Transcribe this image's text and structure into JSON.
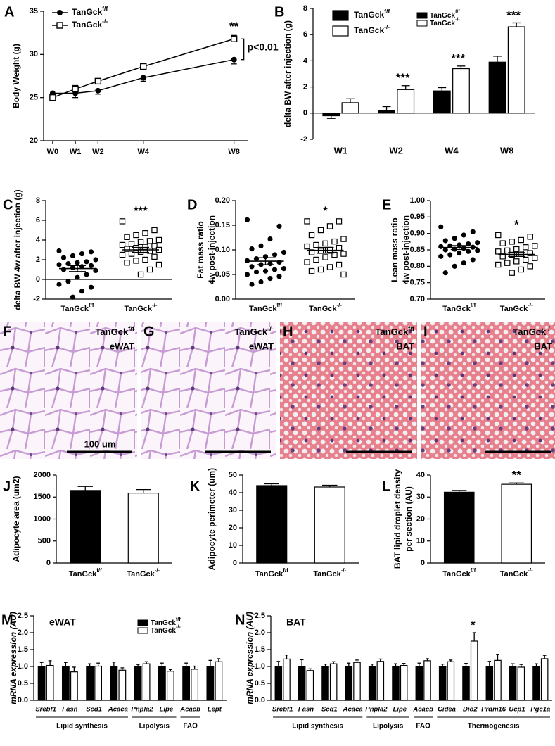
{
  "chart_data": [
    {
      "type": "line",
      "panel": "A",
      "ylabel": "Body Weight (g)",
      "x": [
        0,
        1,
        2,
        4,
        8
      ],
      "xlim": [
        -0.4,
        8.6
      ],
      "xticks": [
        {
          "value": 0,
          "label": "W0"
        },
        {
          "value": 1,
          "label": "W1"
        },
        {
          "value": 2,
          "label": "W2"
        },
        {
          "value": 4,
          "label": "W4"
        },
        {
          "value": 8,
          "label": "W8"
        }
      ],
      "ylim": [
        20,
        35
      ],
      "yticks": [
        20,
        25,
        30,
        35
      ],
      "series": [
        {
          "name": "TanGck",
          "sup": "f/f",
          "color": "#000000",
          "marker": "circle",
          "values": [
            25.5,
            25.5,
            25.8,
            27.3,
            29.4
          ],
          "errors": [
            0.5,
            0.5,
            0.4,
            0.4,
            0.5
          ]
        },
        {
          "name": "TanGck",
          "sup": "-/-",
          "color": "#000000",
          "marker": "square",
          "values": [
            25.0,
            26.0,
            26.9,
            28.6,
            31.8
          ],
          "errors": [
            0.4,
            0.4,
            0.3,
            0.3,
            0.4
          ]
        }
      ],
      "annotations": [
        {
          "text": "**"
        },
        {
          "text": "p<0.01"
        }
      ]
    },
    {
      "type": "bar",
      "panel": "B",
      "ylabel": "delta BW after injection (g)",
      "categories": [
        "W1",
        "W2",
        "W4",
        "W8"
      ],
      "ylim": [
        -2,
        8
      ],
      "yticks": [
        -2,
        0,
        2,
        4,
        6,
        8
      ],
      "series": [
        {
          "name": "TanGck",
          "sup": "f/f",
          "color": "#000000",
          "values": [
            -0.2,
            0.2,
            1.7,
            3.9
          ],
          "errors": [
            0.2,
            0.3,
            0.25,
            0.45
          ]
        },
        {
          "name": "TanGck",
          "sup": "-/-",
          "color": "#ffffff",
          "values": [
            0.8,
            1.8,
            3.4,
            6.6
          ],
          "errors": [
            0.3,
            0.3,
            0.2,
            0.3
          ]
        }
      ],
      "annotations": [
        {
          "text": "***",
          "category": 1
        },
        {
          "text": "***",
          "category": 2
        },
        {
          "text": "***",
          "category": 3
        }
      ]
    },
    {
      "type": "scatter",
      "panel": "C",
      "ylabel": "delta BW 4w after injection (g)",
      "ylim": [
        -2,
        8
      ],
      "yticks": [
        -2,
        0,
        2,
        4,
        6,
        8
      ],
      "zero_line": true,
      "series": [
        {
          "name": "TanGck",
          "sup": "f/f",
          "color": "#000000",
          "marker": "circle",
          "values": [
            2.9,
            2.8,
            2.6,
            2.4,
            2.2,
            2.0,
            1.8,
            1.7,
            1.6,
            1.5,
            1.4,
            1.3,
            1.2,
            1.0,
            0.9,
            0.5,
            0.2,
            -0.2,
            -0.5,
            -0.8,
            -1.2,
            -1.8
          ],
          "mean": 1.1,
          "sem": 0.3
        },
        {
          "name": "TanGck",
          "sup": "-/-",
          "color": "#000000",
          "marker": "square",
          "values": [
            5.9,
            5.0,
            4.7,
            4.5,
            4.3,
            4.0,
            3.9,
            3.8,
            3.6,
            3.5,
            3.4,
            3.3,
            3.2,
            3.1,
            3.0,
            2.9,
            2.8,
            2.6,
            2.5,
            2.3,
            2.0,
            1.9,
            1.7,
            1.5,
            1.0,
            0.5
          ],
          "mean": 3.0,
          "sem": 0.25
        }
      ],
      "annotations": [
        {
          "text": "***",
          "category": 1
        }
      ]
    },
    {
      "type": "scatter",
      "panel": "D",
      "ylabel": [
        "Fat mass ratio",
        "4w post-injection"
      ],
      "ylim": [
        0,
        0.2
      ],
      "yticks": [
        {
          "value": 0,
          "label": "0.00"
        },
        {
          "value": 0.05,
          "label": "0.05"
        },
        {
          "value": 0.1,
          "label": "0.10"
        },
        {
          "value": 0.15,
          "label": "0.15"
        },
        {
          "value": 0.2,
          "label": "0.20"
        }
      ],
      "series": [
        {
          "name": "TanGck",
          "sup": "f/f",
          "color": "#000000",
          "marker": "circle",
          "values": [
            0.161,
            0.148,
            0.122,
            0.108,
            0.102,
            0.095,
            0.09,
            0.086,
            0.082,
            0.078,
            0.075,
            0.072,
            0.07,
            0.066,
            0.062,
            0.06,
            0.057,
            0.055,
            0.05,
            0.046,
            0.042,
            0.035,
            0.03
          ],
          "mean": 0.077,
          "sem": 0.007
        },
        {
          "name": "TanGck",
          "sup": "-/-",
          "color": "#000000",
          "marker": "square",
          "values": [
            0.158,
            0.158,
            0.148,
            0.14,
            0.13,
            0.122,
            0.117,
            0.113,
            0.11,
            0.107,
            0.104,
            0.1,
            0.098,
            0.095,
            0.092,
            0.09,
            0.085,
            0.08,
            0.075,
            0.07,
            0.065,
            0.06,
            0.057,
            0.05
          ],
          "mean": 0.099,
          "sem": 0.006
        }
      ],
      "annotations": [
        {
          "text": "*",
          "category": 1
        }
      ]
    },
    {
      "type": "scatter",
      "panel": "E",
      "ylabel": [
        "Lean mass ratio",
        "4w post-injection"
      ],
      "ylim": [
        0.7,
        1.0
      ],
      "yticks": [
        {
          "value": 0.7,
          "label": "0.70"
        },
        {
          "value": 0.75,
          "label": "0.75"
        },
        {
          "value": 0.8,
          "label": "0.80"
        },
        {
          "value": 0.85,
          "label": "0.85"
        },
        {
          "value": 0.9,
          "label": "0.90"
        },
        {
          "value": 0.95,
          "label": "0.95"
        },
        {
          "value": 1.0,
          "label": "1.00"
        }
      ],
      "series": [
        {
          "name": "TanGck",
          "sup": "f/f",
          "color": "#000000",
          "marker": "circle",
          "values": [
            0.92,
            0.905,
            0.895,
            0.885,
            0.878,
            0.872,
            0.868,
            0.865,
            0.862,
            0.86,
            0.858,
            0.855,
            0.852,
            0.85,
            0.848,
            0.845,
            0.84,
            0.835,
            0.83,
            0.82,
            0.81,
            0.8,
            0.78
          ],
          "mean": 0.857,
          "sem": 0.006
        },
        {
          "name": "TanGck",
          "sup": "-/-",
          "color": "#000000",
          "marker": "square",
          "values": [
            0.895,
            0.89,
            0.88,
            0.875,
            0.87,
            0.862,
            0.858,
            0.852,
            0.848,
            0.845,
            0.84,
            0.838,
            0.835,
            0.83,
            0.825,
            0.82,
            0.815,
            0.81,
            0.805,
            0.8,
            0.79,
            0.78
          ],
          "mean": 0.836,
          "sem": 0.006
        }
      ],
      "annotations": [
        {
          "text": "*",
          "category": 1
        }
      ]
    },
    {
      "type": "bar",
      "panel": "J",
      "ylabel": "Adipocyte area (um2)",
      "categories": [
        {
          "name": "TanGck",
          "sup": "f/f"
        },
        {
          "name": "TanGck",
          "sup": "-/-"
        }
      ],
      "ylim": [
        0,
        2000
      ],
      "yticks": [
        0,
        500,
        1000,
        1500,
        2000
      ],
      "values": [
        1650,
        1590
      ],
      "errors": [
        90,
        80
      ],
      "colors": [
        "#000000",
        "#ffffff"
      ]
    },
    {
      "type": "bar",
      "panel": "K",
      "ylabel": "Adipocyte perimeter (um)",
      "categories": [
        {
          "name": "TanGck",
          "sup": "f/f"
        },
        {
          "name": "TanGck",
          "sup": "-/-"
        }
      ],
      "ylim": [
        0,
        50
      ],
      "yticks": [
        0,
        10,
        20,
        30,
        40,
        50
      ],
      "values": [
        44,
        43.2
      ],
      "errors": [
        1,
        1
      ],
      "colors": [
        "#000000",
        "#ffffff"
      ]
    },
    {
      "type": "bar",
      "panel": "L",
      "ylabel": [
        "BAT lipid droplet density",
        "per section (AU)"
      ],
      "categories": [
        {
          "name": "TanGck",
          "sup": "f/f"
        },
        {
          "name": "TanGck",
          "sup": "-/-"
        }
      ],
      "ylim": [
        0,
        40
      ],
      "yticks": [
        0,
        10,
        20,
        30,
        40
      ],
      "values": [
        32.2,
        35.8
      ],
      "errors": [
        0.8,
        0.6
      ],
      "colors": [
        "#000000",
        "#ffffff"
      ],
      "annotations": [
        {
          "text": "**",
          "category": 1
        }
      ]
    },
    {
      "type": "bar",
      "panel": "M",
      "tissue": "eWAT",
      "ylabel": "mRNA expression (AU)",
      "categories": [
        "Srebf1",
        "Fasn",
        "Scd1",
        "Acaca",
        "Pnpla2",
        "Lipe",
        "Acacb",
        "Lept"
      ],
      "ylim": [
        0,
        2.5
      ],
      "yticks": [
        {
          "value": 0,
          "label": "0.0"
        },
        {
          "value": 0.5,
          "label": "0.5"
        },
        {
          "value": 1,
          "label": "1.0"
        },
        {
          "value": 1.5,
          "label": "1.5"
        },
        {
          "value": 2,
          "label": "2.0"
        },
        {
          "value": 2.5,
          "label": "2.5"
        }
      ],
      "series": [
        {
          "name": "TanGck",
          "sup": "f/f",
          "color": "#000000",
          "values": [
            1,
            1,
            1,
            1,
            1,
            1,
            1,
            1
          ],
          "errors": [
            0.12,
            0.12,
            0.08,
            0.13,
            0.06,
            0.1,
            0.1,
            0.18
          ]
        },
        {
          "name": "TanGck",
          "sup": "-/-",
          "color": "#ffffff",
          "values": [
            1.03,
            0.84,
            1.01,
            0.89,
            1.08,
            0.86,
            0.92,
            1.14
          ],
          "errors": [
            0.14,
            0.14,
            0.09,
            0.07,
            0.06,
            0.05,
            0.09,
            0.09
          ]
        }
      ],
      "groups": [
        {
          "label": "Lipid synthesis",
          "span": [
            0,
            3
          ]
        },
        {
          "label": "Lipolysis",
          "span": [
            4,
            5
          ]
        },
        {
          "label": "FAO",
          "span": [
            6,
            6
          ]
        }
      ]
    },
    {
      "type": "bar",
      "panel": "N",
      "tissue": "BAT",
      "ylabel": "mRNA expression (AU)",
      "categories": [
        "Srebf1",
        "Fasn",
        "Scd1",
        "Acaca",
        "Pnpla2",
        "Lipe",
        "Acacb",
        "Cidea",
        "Dio2",
        "Prdm16",
        "Ucp1",
        "Pgc1a"
      ],
      "ylim": [
        0,
        2.5
      ],
      "yticks": [
        {
          "value": 0,
          "label": "0.0"
        },
        {
          "value": 0.5,
          "label": "0.5"
        },
        {
          "value": 1,
          "label": "1.0"
        },
        {
          "value": 1.5,
          "label": "1.5"
        },
        {
          "value": 2,
          "label": "2.0"
        },
        {
          "value": 2.5,
          "label": "2.5"
        }
      ],
      "series": [
        {
          "color": "#000000",
          "values": [
            1,
            1,
            1,
            1,
            1,
            1,
            1,
            1,
            1,
            1,
            1,
            1
          ],
          "errors": [
            0.15,
            0.2,
            0.07,
            0.1,
            0.07,
            0.08,
            0.1,
            0.07,
            0.09,
            0.15,
            0.08,
            0.08
          ]
        },
        {
          "color": "#ffffff",
          "values": [
            1.22,
            0.88,
            1.08,
            1.12,
            1.15,
            1.03,
            1.17,
            1.14,
            1.75,
            1.18,
            0.98,
            1.23
          ],
          "errors": [
            0.12,
            0.05,
            0.06,
            0.07,
            0.07,
            0.06,
            0.06,
            0.05,
            0.25,
            0.18,
            0.08,
            0.1
          ]
        }
      ],
      "groups": [
        {
          "label": "Lipid synthesis",
          "span": [
            0,
            3
          ]
        },
        {
          "label": "Lipolysis",
          "span": [
            4,
            5
          ]
        },
        {
          "label": "FAO",
          "span": [
            6,
            6
          ]
        },
        {
          "label": "Thermogenesis",
          "span": [
            7,
            11
          ]
        }
      ],
      "annotations": [
        {
          "text": "*",
          "category": 8
        }
      ]
    }
  ],
  "images": [
    {
      "panel": "F",
      "name": "TanGck",
      "sup": "f/f",
      "tissue": "eWAT",
      "scale_label": "100 um"
    },
    {
      "panel": "G",
      "name": "TanGck",
      "sup": "-/-",
      "tissue": "eWAT"
    },
    {
      "panel": "H",
      "name": "TanGck",
      "sup": "f/f",
      "tissue": "BAT"
    },
    {
      "panel": "I",
      "name": "TanGck",
      "sup": "-/-",
      "tissue": "BAT"
    }
  ]
}
